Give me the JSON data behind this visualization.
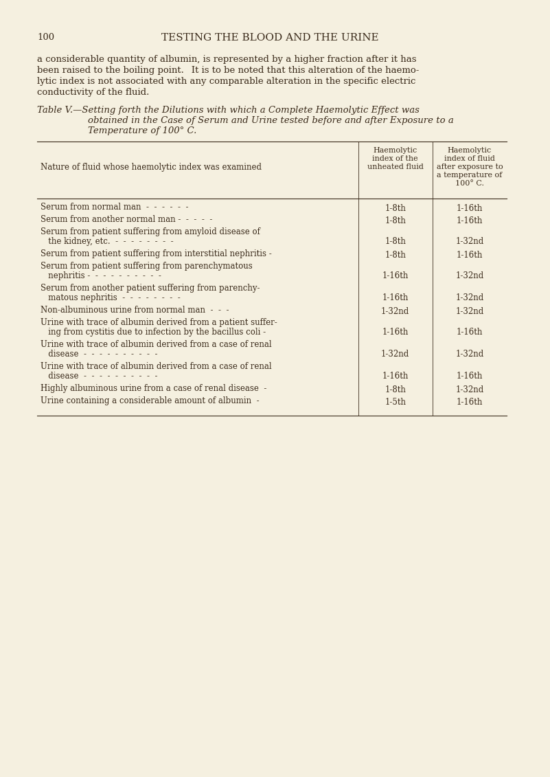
{
  "bg_color": "#f5f0e0",
  "text_color": "#3a2a1a",
  "page_number": "100",
  "page_header": "TESTING THE BLOOD AND THE URINE",
  "intro_text": "a considerable quantity of albumin, is represented by a higher fraction after it has been raised to the boiling point. It is to be noted that this alteration of the haemo-lytic index is not associated with any comparable alteration in the specific electric conductivity of the fluid.",
  "table_caption_line1": "Table V.—Setting forth the Dilutions with which a Complete Haemolytic Effect was",
  "table_caption_line2": "obtained in the Case of Serum and Urine tested before and after Exposure to a",
  "table_caption_line3": "Temperature of 100° C.",
  "col1_header": "Nature of fluid whose haemolytic index was examined",
  "col2_header": "Haemolytic\nindex of the\nunheated fluid",
  "col3_header": "Haemolytic\nindex of fluid\nafter exposure to\na temperature of\n100° C.",
  "rows": [
    {
      "nature": [
        "Serum from normal man  -  -  -  -  -  -"
      ],
      "unheated": "1-8th",
      "heated": "1-16th"
    },
    {
      "nature": [
        "Serum from another normal man -  -  -  -  -"
      ],
      "unheated": "1-8th",
      "heated": "1-16th"
    },
    {
      "nature": [
        "Serum from patient suffering from amyloid disease of",
        "   the kidney, etc.  -  -  -  -  -  -  -  -"
      ],
      "unheated": "1-8th",
      "heated": "1-32nd"
    },
    {
      "nature": [
        "Serum from patient suffering from interstitial nephritis -"
      ],
      "unheated": "1-8th",
      "heated": "1-16th"
    },
    {
      "nature": [
        "Serum from patient suffering from parenchymatous",
        "   nephritis -  -  -  -  -  -  -  -  -  -"
      ],
      "unheated": "1-16th",
      "heated": "1-32nd"
    },
    {
      "nature": [
        "Serum from another patient suffering from parenchy-",
        "   matous nephritis  -  -  -  -  -  -  -  -"
      ],
      "unheated": "1-16th",
      "heated": "1-32nd"
    },
    {
      "nature": [
        "Non-albuminous urine from normal man  -  -  -"
      ],
      "unheated": "1-32nd",
      "heated": "1-32nd"
    },
    {
      "nature": [
        "Urine with trace of albumin derived from a patient suffer-",
        "   ing from cystitis due to infection by the bacillus coli -"
      ],
      "unheated": "1-16th",
      "heated": "1-16th"
    },
    {
      "nature": [
        "Urine with trace of albumin derived from a case of renal",
        "   disease  -  -  -  -  -  -  -  -  -  -"
      ],
      "unheated": "1-32nd",
      "heated": "1-32nd"
    },
    {
      "nature": [
        "Urine with trace of albumin derived from a case of renal",
        "   disease  -  -  -  -  -  -  -  -  -  -"
      ],
      "unheated": "1-16th",
      "heated": "1-16th"
    },
    {
      "nature": [
        "Highly albuminous urine from a case of renal disease  -"
      ],
      "unheated": "1-8th",
      "heated": "1-32nd"
    },
    {
      "nature": [
        "Urine containing a considerable amount of albumin  -"
      ],
      "unheated": "1-5th",
      "heated": "1-16th"
    }
  ]
}
